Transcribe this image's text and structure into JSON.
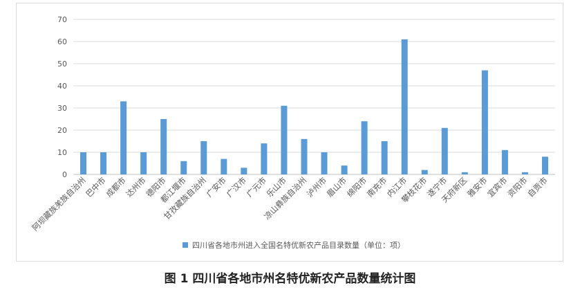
{
  "caption": "图 1 四川省各地市州名特优新农产品数量统计图",
  "chart_data": {
    "type": "bar",
    "categories": [
      "阿坝藏族羌族自治州",
      "巴中市",
      "成都市",
      "达州市",
      "德阳市",
      "都江堰市",
      "甘孜藏族自治州",
      "广安市",
      "广汉市",
      "广元市",
      "乐山市",
      "凉山彝族自治州",
      "泸州市",
      "眉山市",
      "绵阳市",
      "南充市",
      "内江市",
      "攀枝花市",
      "遂宁市",
      "天府新区",
      "雅安市",
      "宜宾市",
      "资阳市",
      "自贡市"
    ],
    "series": [
      {
        "name": "四川省各地市州进入全国名特优新农产品目录数量（单位：项）",
        "values": [
          10,
          10,
          33,
          10,
          25,
          6,
          15,
          7,
          3,
          14,
          31,
          16,
          10,
          4,
          24,
          15,
          61,
          2,
          21,
          1,
          47,
          11,
          1,
          8
        ]
      }
    ],
    "yticks": [
      0,
      10,
      20,
      30,
      40,
      50,
      60,
      70
    ],
    "ylim": [
      0,
      70
    ],
    "grid": true,
    "legend": "bottom",
    "colors": {
      "bar": "#5b9bd5",
      "grid": "#d9d9d9",
      "text": "#595959"
    }
  }
}
